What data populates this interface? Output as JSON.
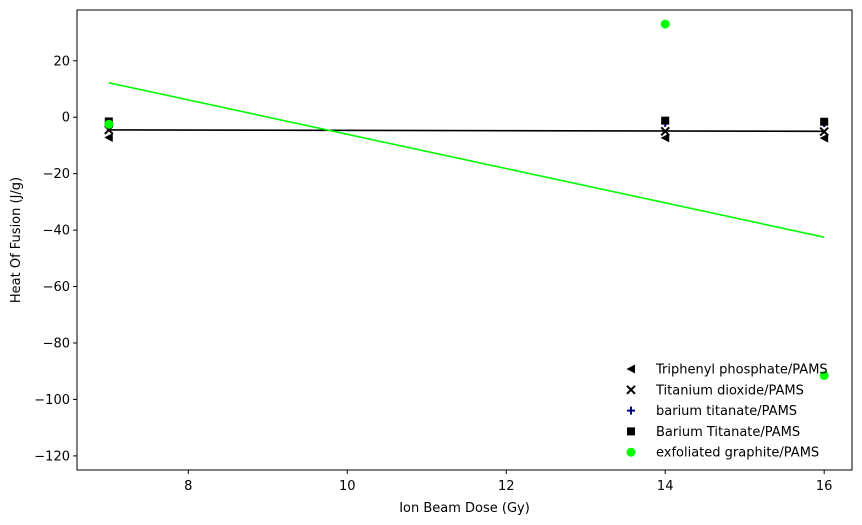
{
  "chart_data": {
    "type": "scatter",
    "title": "",
    "xlabel": "Ion Beam Dose (Gy)",
    "ylabel": "Heat Of Fusion (J/g)",
    "xlim": [
      6.6,
      16.35
    ],
    "ylim": [
      -125,
      38
    ],
    "xticks": [
      8,
      10,
      12,
      14,
      16
    ],
    "yticks": [
      20,
      0,
      -20,
      -40,
      -60,
      -80,
      -100,
      -120
    ],
    "grid": false,
    "legend_position": "bottom-right",
    "series": [
      {
        "name": "Triphenyl phosphate/PAMS",
        "marker": "triangle-left",
        "color": "#000000",
        "x": [
          7,
          14,
          16
        ],
        "y": [
          -7.2,
          -7.3,
          -7.4
        ]
      },
      {
        "name": "Titanium dioxide/PAMS",
        "marker": "x",
        "color": "#000000",
        "x": [
          7,
          14,
          16
        ],
        "y": [
          -4.5,
          -5.0,
          -5.1
        ]
      },
      {
        "name": "barium titanate/PAMS",
        "marker": "plus",
        "color": "#00008b",
        "x": [
          7,
          14,
          16
        ],
        "y": [
          -2.3,
          -2.0,
          -2.1
        ]
      },
      {
        "name": "Barium Titanate/PAMS",
        "marker": "square",
        "color": "#000000",
        "x": [
          7,
          14,
          16
        ],
        "y": [
          -1.5,
          -1.2,
          -1.6
        ]
      },
      {
        "name": "exfoliated graphite/PAMS",
        "marker": "circle",
        "color": "#00ff00",
        "x": [
          7,
          14,
          16
        ],
        "y": [
          -2.5,
          33,
          -91.5
        ]
      }
    ],
    "fit_lines": [
      {
        "color": "#000000",
        "x": [
          7,
          16
        ],
        "y": [
          -4.5,
          -5.0
        ]
      },
      {
        "color": "#00ff00",
        "x": [
          7,
          16
        ],
        "y": [
          12.2,
          -42.5
        ]
      }
    ]
  }
}
